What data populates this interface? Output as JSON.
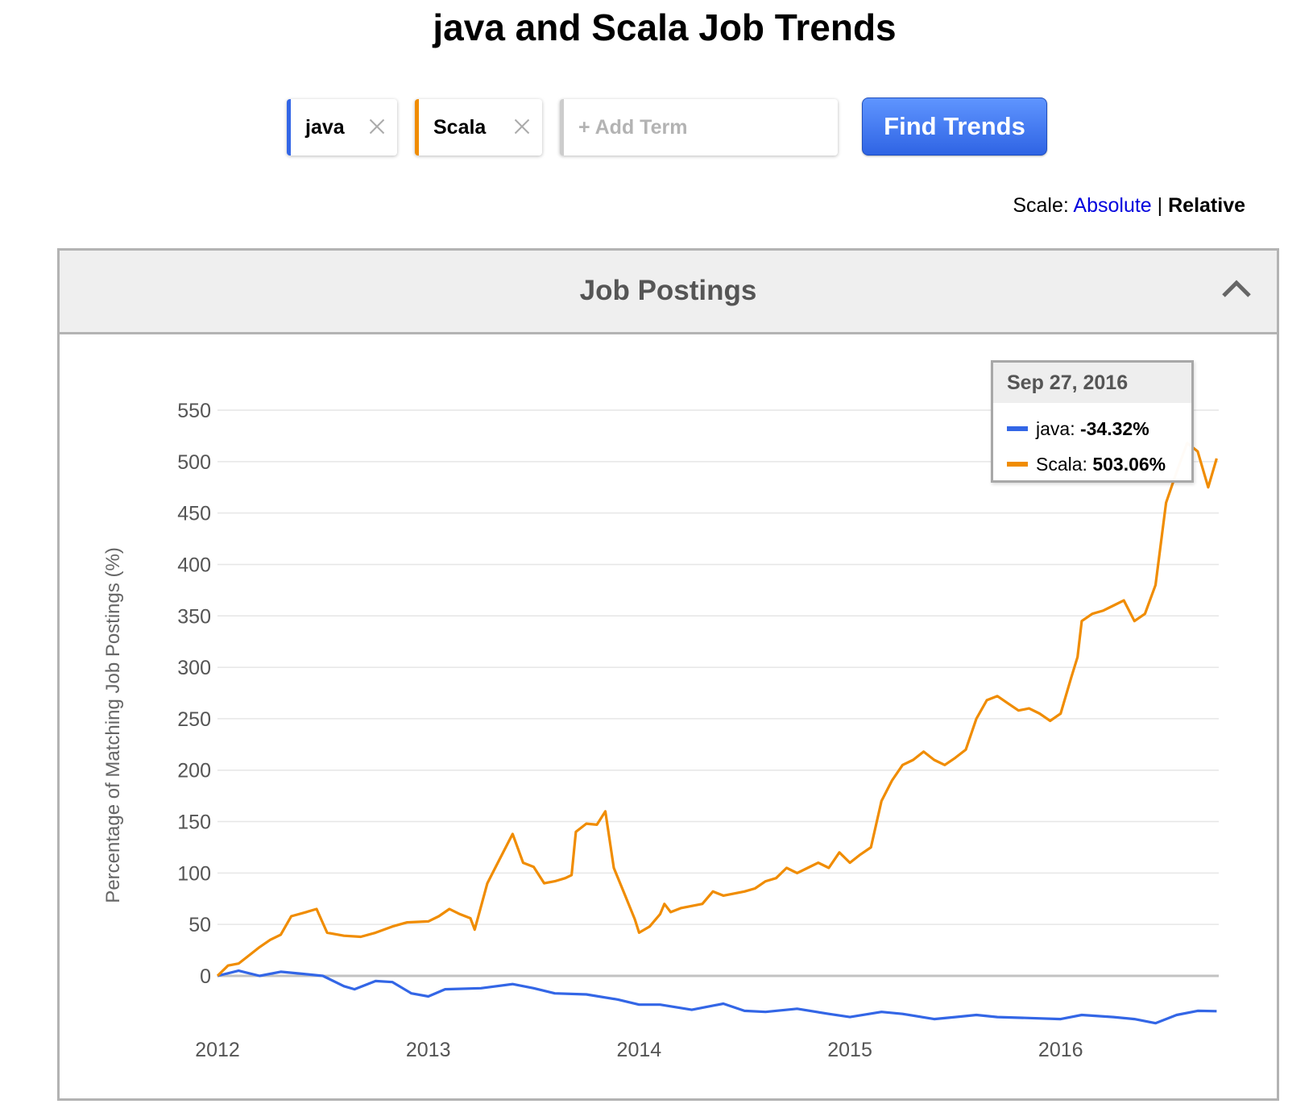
{
  "page": {
    "title": "java and Scala Job Trends"
  },
  "search": {
    "terms": [
      {
        "label": "java",
        "color": "#3366e6"
      },
      {
        "label": "Scala",
        "color": "#f08c00"
      }
    ],
    "add_placeholder": "+ Add Term",
    "find_label": "Find Trends"
  },
  "scale": {
    "label": "Scale:",
    "absolute": "Absolute",
    "separator": "|",
    "relative": "Relative",
    "selected": "Relative"
  },
  "panel": {
    "title": "Job Postings"
  },
  "tooltip": {
    "date": "Sep 27, 2016",
    "rows": [
      {
        "name": "java",
        "sep": ":",
        "value": "-34.32%",
        "color": "#3366e6"
      },
      {
        "name": "Scala",
        "sep": ":",
        "value": "503.06%",
        "color": "#f08c00"
      }
    ]
  },
  "chart_data": {
    "type": "line",
    "title": "",
    "xlabel": "",
    "ylabel": "Percentage of Matching Job Postings (%)",
    "xlim": [
      2012.0,
      2016.75
    ],
    "ylim": [
      -50,
      550
    ],
    "yticks": [
      0,
      50,
      100,
      150,
      200,
      250,
      300,
      350,
      400,
      450,
      500,
      550
    ],
    "xticks": [
      "2012",
      "2013",
      "2014",
      "2015",
      "2016"
    ],
    "grid": true,
    "legend": "tooltip",
    "series": [
      {
        "name": "java",
        "color": "#3366e6",
        "points": [
          [
            2012.0,
            0
          ],
          [
            2012.1,
            5
          ],
          [
            2012.2,
            0
          ],
          [
            2012.3,
            4
          ],
          [
            2012.4,
            2
          ],
          [
            2012.5,
            0
          ],
          [
            2012.6,
            -10
          ],
          [
            2012.65,
            -13
          ],
          [
            2012.75,
            -5
          ],
          [
            2012.83,
            -6
          ],
          [
            2012.92,
            -17
          ],
          [
            2013.0,
            -20
          ],
          [
            2013.08,
            -13
          ],
          [
            2013.25,
            -12
          ],
          [
            2013.4,
            -8
          ],
          [
            2013.5,
            -12
          ],
          [
            2013.6,
            -17
          ],
          [
            2013.75,
            -18
          ],
          [
            2013.9,
            -23
          ],
          [
            2014.0,
            -28
          ],
          [
            2014.1,
            -28
          ],
          [
            2014.25,
            -33
          ],
          [
            2014.4,
            -27
          ],
          [
            2014.5,
            -34
          ],
          [
            2014.6,
            -35
          ],
          [
            2014.75,
            -32
          ],
          [
            2014.9,
            -37
          ],
          [
            2015.0,
            -40
          ],
          [
            2015.15,
            -35
          ],
          [
            2015.25,
            -37
          ],
          [
            2015.4,
            -42
          ],
          [
            2015.5,
            -40
          ],
          [
            2015.6,
            -38
          ],
          [
            2015.7,
            -40
          ],
          [
            2015.85,
            -41
          ],
          [
            2016.0,
            -42
          ],
          [
            2016.1,
            -38
          ],
          [
            2016.25,
            -40
          ],
          [
            2016.35,
            -42
          ],
          [
            2016.45,
            -46
          ],
          [
            2016.55,
            -38
          ],
          [
            2016.65,
            -34
          ],
          [
            2016.74,
            -34.32
          ]
        ]
      },
      {
        "name": "Scala",
        "color": "#f08c00",
        "points": [
          [
            2012.0,
            0
          ],
          [
            2012.05,
            10
          ],
          [
            2012.1,
            12
          ],
          [
            2012.15,
            20
          ],
          [
            2012.2,
            28
          ],
          [
            2012.25,
            35
          ],
          [
            2012.3,
            40
          ],
          [
            2012.35,
            58
          ],
          [
            2012.42,
            62
          ],
          [
            2012.47,
            65
          ],
          [
            2012.52,
            42
          ],
          [
            2012.6,
            39
          ],
          [
            2012.68,
            38
          ],
          [
            2012.75,
            42
          ],
          [
            2012.83,
            48
          ],
          [
            2012.9,
            52
          ],
          [
            2013.0,
            53
          ],
          [
            2013.05,
            58
          ],
          [
            2013.1,
            65
          ],
          [
            2013.15,
            60
          ],
          [
            2013.2,
            56
          ],
          [
            2013.22,
            45
          ],
          [
            2013.28,
            90
          ],
          [
            2013.33,
            110
          ],
          [
            2013.38,
            130
          ],
          [
            2013.4,
            138
          ],
          [
            2013.45,
            110
          ],
          [
            2013.5,
            106
          ],
          [
            2013.55,
            90
          ],
          [
            2013.6,
            92
          ],
          [
            2013.65,
            95
          ],
          [
            2013.68,
            98
          ],
          [
            2013.7,
            140
          ],
          [
            2013.75,
            148
          ],
          [
            2013.8,
            147
          ],
          [
            2013.84,
            160
          ],
          [
            2013.88,
            105
          ],
          [
            2013.93,
            80
          ],
          [
            2013.98,
            55
          ],
          [
            2014.0,
            42
          ],
          [
            2014.05,
            48
          ],
          [
            2014.1,
            60
          ],
          [
            2014.12,
            70
          ],
          [
            2014.15,
            62
          ],
          [
            2014.2,
            66
          ],
          [
            2014.3,
            70
          ],
          [
            2014.35,
            82
          ],
          [
            2014.4,
            78
          ],
          [
            2014.5,
            82
          ],
          [
            2014.55,
            85
          ],
          [
            2014.6,
            92
          ],
          [
            2014.65,
            95
          ],
          [
            2014.7,
            105
          ],
          [
            2014.75,
            100
          ],
          [
            2014.8,
            105
          ],
          [
            2014.85,
            110
          ],
          [
            2014.9,
            105
          ],
          [
            2014.95,
            120
          ],
          [
            2015.0,
            110
          ],
          [
            2015.05,
            118
          ],
          [
            2015.1,
            125
          ],
          [
            2015.15,
            170
          ],
          [
            2015.2,
            190
          ],
          [
            2015.25,
            205
          ],
          [
            2015.3,
            210
          ],
          [
            2015.35,
            218
          ],
          [
            2015.4,
            210
          ],
          [
            2015.45,
            205
          ],
          [
            2015.5,
            212
          ],
          [
            2015.55,
            220
          ],
          [
            2015.6,
            250
          ],
          [
            2015.65,
            268
          ],
          [
            2015.7,
            272
          ],
          [
            2015.75,
            265
          ],
          [
            2015.8,
            258
          ],
          [
            2015.85,
            260
          ],
          [
            2015.9,
            255
          ],
          [
            2015.95,
            248
          ],
          [
            2016.0,
            255
          ],
          [
            2016.05,
            290
          ],
          [
            2016.08,
            310
          ],
          [
            2016.1,
            345
          ],
          [
            2016.15,
            352
          ],
          [
            2016.2,
            355
          ],
          [
            2016.25,
            360
          ],
          [
            2016.3,
            365
          ],
          [
            2016.35,
            345
          ],
          [
            2016.4,
            352
          ],
          [
            2016.45,
            380
          ],
          [
            2016.5,
            460
          ],
          [
            2016.55,
            490
          ],
          [
            2016.6,
            518
          ],
          [
            2016.65,
            510
          ],
          [
            2016.7,
            475
          ],
          [
            2016.74,
            503.06
          ]
        ]
      }
    ]
  }
}
